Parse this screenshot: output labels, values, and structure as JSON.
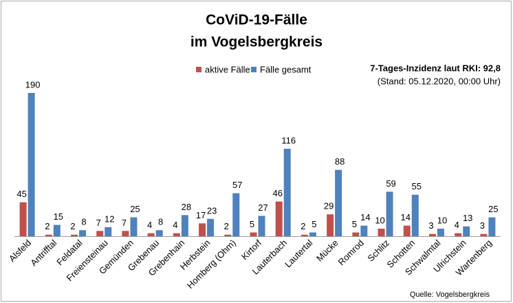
{
  "chart_data": {
    "type": "bar",
    "title": "CoViD-19-Fälle",
    "subtitle": "im Vogelsbergkreis",
    "annotations": [
      "7-Tages-Inzidenz laut RKI: 92,8",
      "(Stand: 05.12.2020, 00:00 Uhr)",
      "Quelle: Vogelsbergkreis"
    ],
    "categories": [
      "Alsfeld",
      "Antrifftal",
      "Feldatal",
      "Freiensteinau",
      "Gemünden",
      "Grebenau",
      "Grebenhain",
      "Herbstein",
      "Homberg (Ohm)",
      "Kirtorf",
      "Lauterbach",
      "Lautertal",
      "Mücke",
      "Romrod",
      "Schlitz",
      "Schotten",
      "Schwalmtal",
      "Ulrichstein",
      "Wartenberg"
    ],
    "series": [
      {
        "name": "aktive Fälle",
        "color": "#c0504d",
        "values": [
          45,
          2,
          2,
          7,
          7,
          4,
          4,
          17,
          2,
          5,
          46,
          2,
          29,
          5,
          10,
          14,
          3,
          4,
          3
        ]
      },
      {
        "name": "Fälle gesamt",
        "color": "#4f81bd",
        "values": [
          190,
          15,
          8,
          12,
          25,
          8,
          28,
          23,
          57,
          27,
          116,
          5,
          88,
          14,
          59,
          55,
          10,
          13,
          25
        ]
      }
    ],
    "grid": false
  }
}
